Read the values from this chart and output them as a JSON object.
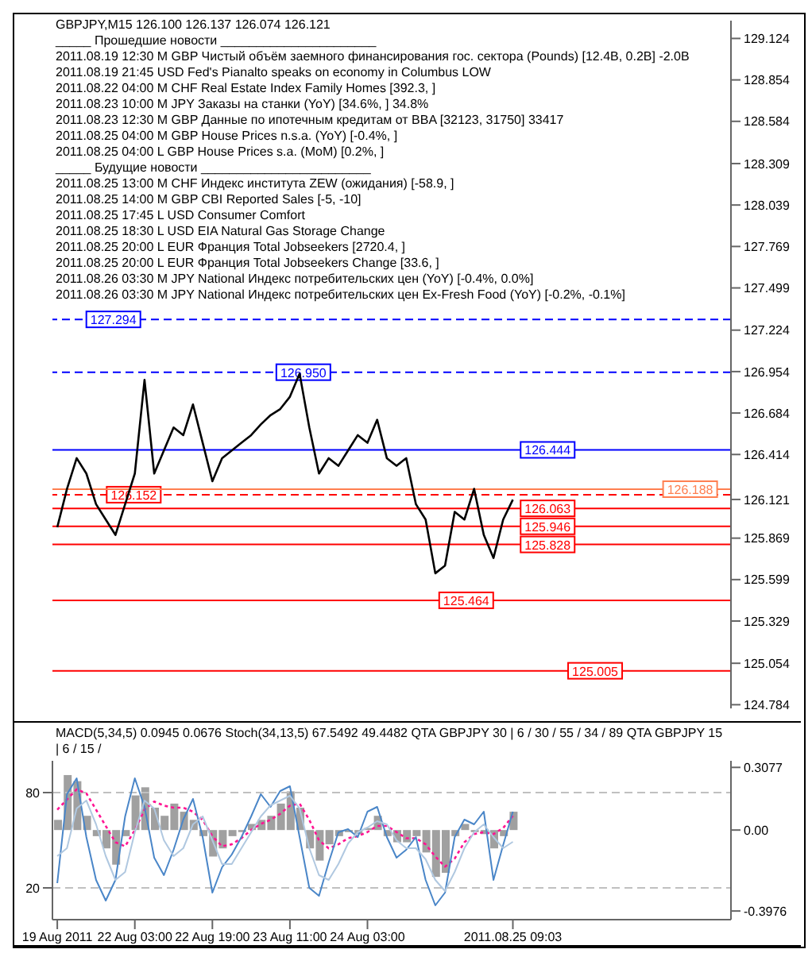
{
  "chart_data": [
    {
      "type": "line",
      "title": "GBPJPY,M15  126.100 126.137 126.074 126.121",
      "categories": [
        null,
        null,
        null,
        null,
        null,
        null,
        null,
        null,
        null,
        null,
        null,
        null,
        null,
        null,
        null,
        null,
        null,
        null,
        null,
        null,
        null,
        null,
        null,
        null,
        null,
        null,
        null,
        null,
        null,
        null,
        null,
        null,
        null,
        null,
        null,
        null,
        null,
        null,
        null,
        null,
        null,
        null,
        null,
        null,
        null,
        null,
        null,
        null,
        null,
        null,
        null,
        null,
        null,
        null,
        null,
        null,
        null,
        null,
        null,
        null,
        null,
        null,
        null,
        null,
        null,
        null,
        null,
        null,
        null,
        null
      ],
      "tick_labels": "y",
      "color": "#000000",
      "values": [
        125.94,
        126.19,
        126.39,
        126.29,
        126.09,
        125.99,
        125.89,
        126.09,
        126.29,
        126.9,
        126.29,
        126.44,
        126.59,
        126.54,
        126.74,
        126.49,
        126.24,
        126.39,
        126.44,
        126.49,
        126.54,
        126.61,
        126.67,
        126.71,
        126.79,
        126.94,
        126.59,
        126.29,
        126.39,
        126.34,
        126.44,
        126.54,
        126.49,
        126.64,
        126.39,
        126.34,
        126.39,
        126.09,
        125.99,
        125.64,
        125.69,
        126.04,
        125.99,
        126.19,
        125.89,
        125.74,
        125.99,
        126.12,
        null,
        null,
        null,
        null,
        null,
        null,
        null,
        null,
        null,
        null,
        null,
        null,
        null,
        null,
        null,
        null,
        null,
        null,
        null,
        null,
        null,
        null
      ],
      "ylim": [
        124.76,
        129.24
      ],
      "yticks": [
        129.124,
        128.854,
        128.584,
        128.309,
        128.039,
        127.769,
        127.499,
        127.224,
        126.954,
        126.684,
        126.414,
        126.121,
        125.869,
        125.599,
        125.329,
        125.054,
        124.784
      ],
      "grid": false,
      "legend": false,
      "ref_lines": [
        {
          "axis": "y",
          "value": 127.294,
          "label": "127.294",
          "color": "#0000ff",
          "line_style": "dashed"
        },
        {
          "axis": "y",
          "value": 126.95,
          "label": "126.950",
          "color": "#0000ff",
          "line_style": "dashed"
        },
        {
          "axis": "y",
          "value": 126.444,
          "label": "126.444",
          "color": "#0000ff",
          "line_style": "solid"
        },
        {
          "axis": "y",
          "value": 126.152,
          "label": "126.152",
          "color": "#ff0000",
          "line_style": "dashed"
        },
        {
          "axis": "y",
          "value": 126.063,
          "label": "126.063",
          "color": "#ff0000",
          "line_style": "solid"
        },
        {
          "axis": "y",
          "value": 125.946,
          "label": "125.946",
          "color": "#ff0000",
          "line_style": "solid"
        },
        {
          "axis": "y",
          "value": 125.828,
          "label": "125.828",
          "color": "#ff0000",
          "line_style": "solid"
        },
        {
          "axis": "y",
          "value": 125.464,
          "label": "125.464",
          "color": "#ff0000",
          "line_style": "solid"
        },
        {
          "axis": "y",
          "value": 125.005,
          "label": "125.005",
          "color": "#ff0000",
          "line_style": "solid"
        },
        {
          "axis": "y",
          "value": 126.188,
          "label": "126.188",
          "color": "#ff7f50",
          "line_style": "solid"
        }
      ],
      "annotations": [
        "_____ Прошедшие новости ______________________",
        "2011.08.19 12:30 M GBP Чистый объём заемного финансирования гос. сектора (Pounds) [12.4B, 0.2B] -2.0B",
        "2011.08.19 21:45   USD Fed's Pianalto speaks on economy in Columbus  LOW",
        "2011.08.22 04:00 M CHF Real Estate Index Family Homes [392.3, ]",
        "2011.08.23 10:00 M JPY Заказы на станки (YoY) [34.6%, ] 34.8%",
        "2011.08.23 12:30 M GBP Данные по ипотечным кредитам от BBA [32123, 31750] 33417",
        "2011.08.25 04:00 M GBP House Prices n.s.a. (YoY) [-0.4%, ]",
        "2011.08.25 04:00 L GBP House Prices s.a. (MoM) [0.2%, ]",
        "_____ Будущие новости ________________________",
        "2011.08.25 13:00 M CHF Индекс института ZEW (ожидания) [-58.9, ]",
        "2011.08.25 14:00 M GBP CBI Reported Sales [-5, -10]",
        "2011.08.25 17:45 L USD Consumer Comfort",
        "2011.08.25 18:30 L USD EIA Natural Gas Storage Change",
        "2011.08.25 20:00 L EUR Франция Total Jobseekers [2720.4, ]",
        "2011.08.25 20:00 L EUR Франция Total Jobseekers Change [33.6, ]",
        "2011.08.26 03:30 M JPY National Индекс потребительских цен (YoY) [-0.4%, 0.0%]",
        "2011.08.26 03:30 M JPY National Индекс потребительских цен Ex-Fresh Food (YoY) [-0.2%, -0.1%]"
      ]
    },
    {
      "type": "bar",
      "title": "MACD(5,34,5) 0.0945 0.0676  Stoch(34,13,5) 67.5492 49.4482  QTA GBPJPY 30 | 6 / 30 / 55 / 34 / 89  QTA GBPJPY 15 | 6 / 15 /",
      "categories": [
        "19 Aug 2011",
        null,
        null,
        null,
        null,
        null,
        null,
        null,
        "22 Aug 03:00",
        null,
        null,
        null,
        null,
        null,
        null,
        null,
        "22 Aug 19:00",
        null,
        null,
        null,
        null,
        null,
        null,
        null,
        "23 Aug 11:00",
        null,
        null,
        null,
        null,
        null,
        null,
        null,
        "24 Aug 03:00",
        null,
        null,
        null,
        null,
        null,
        null,
        null,
        null,
        null,
        null,
        null,
        null,
        null,
        null,
        "2011.08.25 09:03",
        null,
        null,
        null,
        null,
        null,
        null,
        null,
        null,
        null,
        null,
        null,
        null,
        null,
        null,
        null,
        null,
        null,
        null,
        null,
        null,
        null,
        null
      ],
      "series": [
        {
          "color": "#a0a0a0",
          "values": [
            0.05,
            0.27,
            0.24,
            0.07,
            -0.03,
            -0.09,
            -0.17,
            -0.03,
            0.17,
            0.21,
            0.11,
            0.07,
            0.13,
            0.09,
            0.05,
            -0.03,
            -0.13,
            -0.09,
            -0.03,
            -0.01,
            0.03,
            0.05,
            0.07,
            0.13,
            0.19,
            0.11,
            -0.09,
            -0.15,
            -0.07,
            -0.03,
            -0.01,
            -0.02,
            0.01,
            0.07,
            -0.03,
            -0.06,
            -0.06,
            -0.03,
            -0.11,
            -0.23,
            -0.21,
            -0.03,
            0.03,
            -0.01,
            -0.02,
            -0.09,
            -0.03,
            0.09,
            null,
            null,
            null,
            null,
            null,
            null,
            null,
            null,
            null,
            null,
            null,
            null,
            null,
            null,
            null,
            null,
            null,
            null,
            null,
            null,
            null,
            null
          ]
        },
        {
          "type": "line",
          "color": "#ff1493",
          "line_style": "dotted",
          "values": [
            0.1,
            0.15,
            0.2,
            0.18,
            0.1,
            0.02,
            -0.06,
            -0.08,
            0.0,
            0.1,
            0.14,
            0.12,
            0.11,
            0.11,
            0.09,
            0.05,
            -0.03,
            -0.08,
            -0.07,
            -0.04,
            0.0,
            0.03,
            0.05,
            0.08,
            0.12,
            0.13,
            0.05,
            -0.05,
            -0.09,
            -0.07,
            -0.04,
            -0.03,
            -0.01,
            0.02,
            0.02,
            -0.01,
            -0.04,
            -0.04,
            -0.07,
            -0.13,
            -0.18,
            -0.14,
            -0.06,
            -0.02,
            -0.01,
            -0.02,
            0.01,
            0.07,
            null,
            null,
            null,
            null,
            null,
            null,
            null,
            null,
            null,
            null,
            null,
            null,
            null,
            null,
            null,
            null,
            null,
            null,
            null,
            null,
            null,
            null
          ]
        },
        {
          "type": "line",
          "axis": "y2",
          "color": "#4a86c8",
          "line_style": "solid",
          "values": [
            23,
            79,
            89,
            52,
            25,
            12,
            25,
            65,
            89,
            71,
            39,
            28,
            44,
            63,
            76,
            52,
            17,
            33,
            41,
            52,
            65,
            79,
            71,
            81,
            84,
            52,
            20,
            15,
            36,
            55,
            57,
            52,
            68,
            71,
            52,
            39,
            44,
            52,
            25,
            9,
            17,
            52,
            63,
            60,
            68,
            25,
            47,
            68,
            null,
            null,
            null,
            null,
            null,
            null,
            null,
            null,
            null,
            null,
            null,
            null,
            null,
            null,
            null,
            null,
            null,
            null,
            null,
            null,
            null,
            null
          ]
        },
        {
          "type": "line",
          "axis": "y2",
          "color": "#b0c8e0",
          "line_style": "solid",
          "values": [
            40,
            45,
            70,
            75,
            60,
            40,
            25,
            30,
            55,
            75,
            70,
            50,
            40,
            45,
            60,
            65,
            50,
            35,
            35,
            45,
            55,
            65,
            72,
            75,
            78,
            70,
            45,
            28,
            25,
            35,
            48,
            55,
            58,
            62,
            60,
            50,
            45,
            45,
            38,
            25,
            18,
            30,
            45,
            55,
            60,
            52,
            45,
            49,
            null,
            null,
            null,
            null,
            null,
            null,
            null,
            null,
            null,
            null,
            null,
            null,
            null,
            null,
            null,
            null,
            null,
            null,
            null,
            null,
            null,
            null
          ]
        }
      ],
      "ylim": [
        -0.44,
        0.34
      ],
      "yticks": [
        0.3077,
        {
          "value": 0,
          "label": "0.00"
        },
        -0.3976
      ],
      "y2lim": [
        0,
        100
      ],
      "y2ticks": [
        80,
        20
      ],
      "ref_lines": [
        {
          "axis": "y2",
          "value": 80,
          "color": "#c0c0c0",
          "line_style": "dashed"
        },
        {
          "axis": "y2",
          "value": 20,
          "color": "#c0c0c0",
          "line_style": "dashed"
        }
      ],
      "marker": "none",
      "grid": false,
      "legend": false
    }
  ]
}
